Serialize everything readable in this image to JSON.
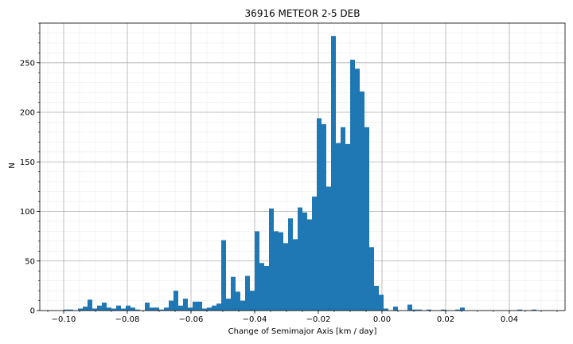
{
  "chart_data": {
    "type": "bar",
    "title": "36916 METEOR 2-5 DEB",
    "xlabel": "Change of Semimajor Axis [km / day]",
    "ylabel": "N",
    "xlim": [
      -0.1075,
      0.0575
    ],
    "ylim": [
      0,
      290
    ],
    "x_ticks": [
      -0.1,
      -0.08,
      -0.06,
      -0.04,
      -0.02,
      0.0,
      0.02,
      0.04
    ],
    "x_tick_labels": [
      "−0.10",
      "−0.08",
      "−0.06",
      "−0.04",
      "−0.02",
      "0.00",
      "0.02",
      "0.04"
    ],
    "y_ticks": [
      0,
      50,
      100,
      150,
      200,
      250
    ],
    "y_tick_labels": [
      "0",
      "50",
      "100",
      "150",
      "200",
      "250"
    ],
    "grid": true,
    "minor_grid": true,
    "bar_color": "#1f77b4",
    "bin_width": 0.0015,
    "bin_starts": [
      -0.1,
      -0.0985,
      -0.0955,
      -0.094,
      -0.0925,
      -0.091,
      -0.0895,
      -0.088,
      -0.0865,
      -0.085,
      -0.0835,
      -0.082,
      -0.0805,
      -0.079,
      -0.0775,
      -0.0745,
      -0.073,
      -0.0715,
      -0.07,
      -0.0685,
      -0.067,
      -0.0655,
      -0.064,
      -0.0625,
      -0.061,
      -0.0595,
      -0.058,
      -0.0565,
      -0.055,
      -0.0535,
      -0.052,
      -0.0505,
      -0.049,
      -0.0475,
      -0.046,
      -0.0445,
      -0.043,
      -0.0415,
      -0.04,
      -0.0385,
      -0.037,
      -0.0355,
      -0.034,
      -0.0325,
      -0.031,
      -0.0295,
      -0.028,
      -0.0265,
      -0.025,
      -0.0235,
      -0.022,
      -0.0205,
      -0.019,
      -0.0175,
      -0.016,
      -0.0145,
      -0.013,
      -0.0115,
      -0.01,
      -0.0085,
      -0.007,
      -0.0055,
      -0.004,
      -0.0025,
      -0.001,
      0.0005,
      0.0035,
      0.008,
      0.0095,
      0.011,
      0.014,
      0.0185,
      0.023,
      0.0245,
      0.0425,
      0.047
    ],
    "values": [
      1,
      1,
      2,
      4,
      11,
      2,
      5,
      8,
      3,
      2,
      5,
      2,
      5,
      3,
      1,
      8,
      3,
      3,
      1,
      3,
      10,
      20,
      5,
      12,
      3,
      9,
      9,
      2,
      3,
      5,
      7,
      71,
      12,
      34,
      19,
      10,
      35,
      20,
      80,
      48,
      45,
      103,
      80,
      79,
      68,
      93,
      72,
      104,
      99,
      92,
      115,
      194,
      188,
      125,
      277,
      169,
      185,
      168,
      253,
      244,
      221,
      185,
      64,
      25,
      16,
      2,
      4,
      6,
      1,
      1,
      1,
      1,
      1,
      3,
      1,
      1
    ]
  }
}
